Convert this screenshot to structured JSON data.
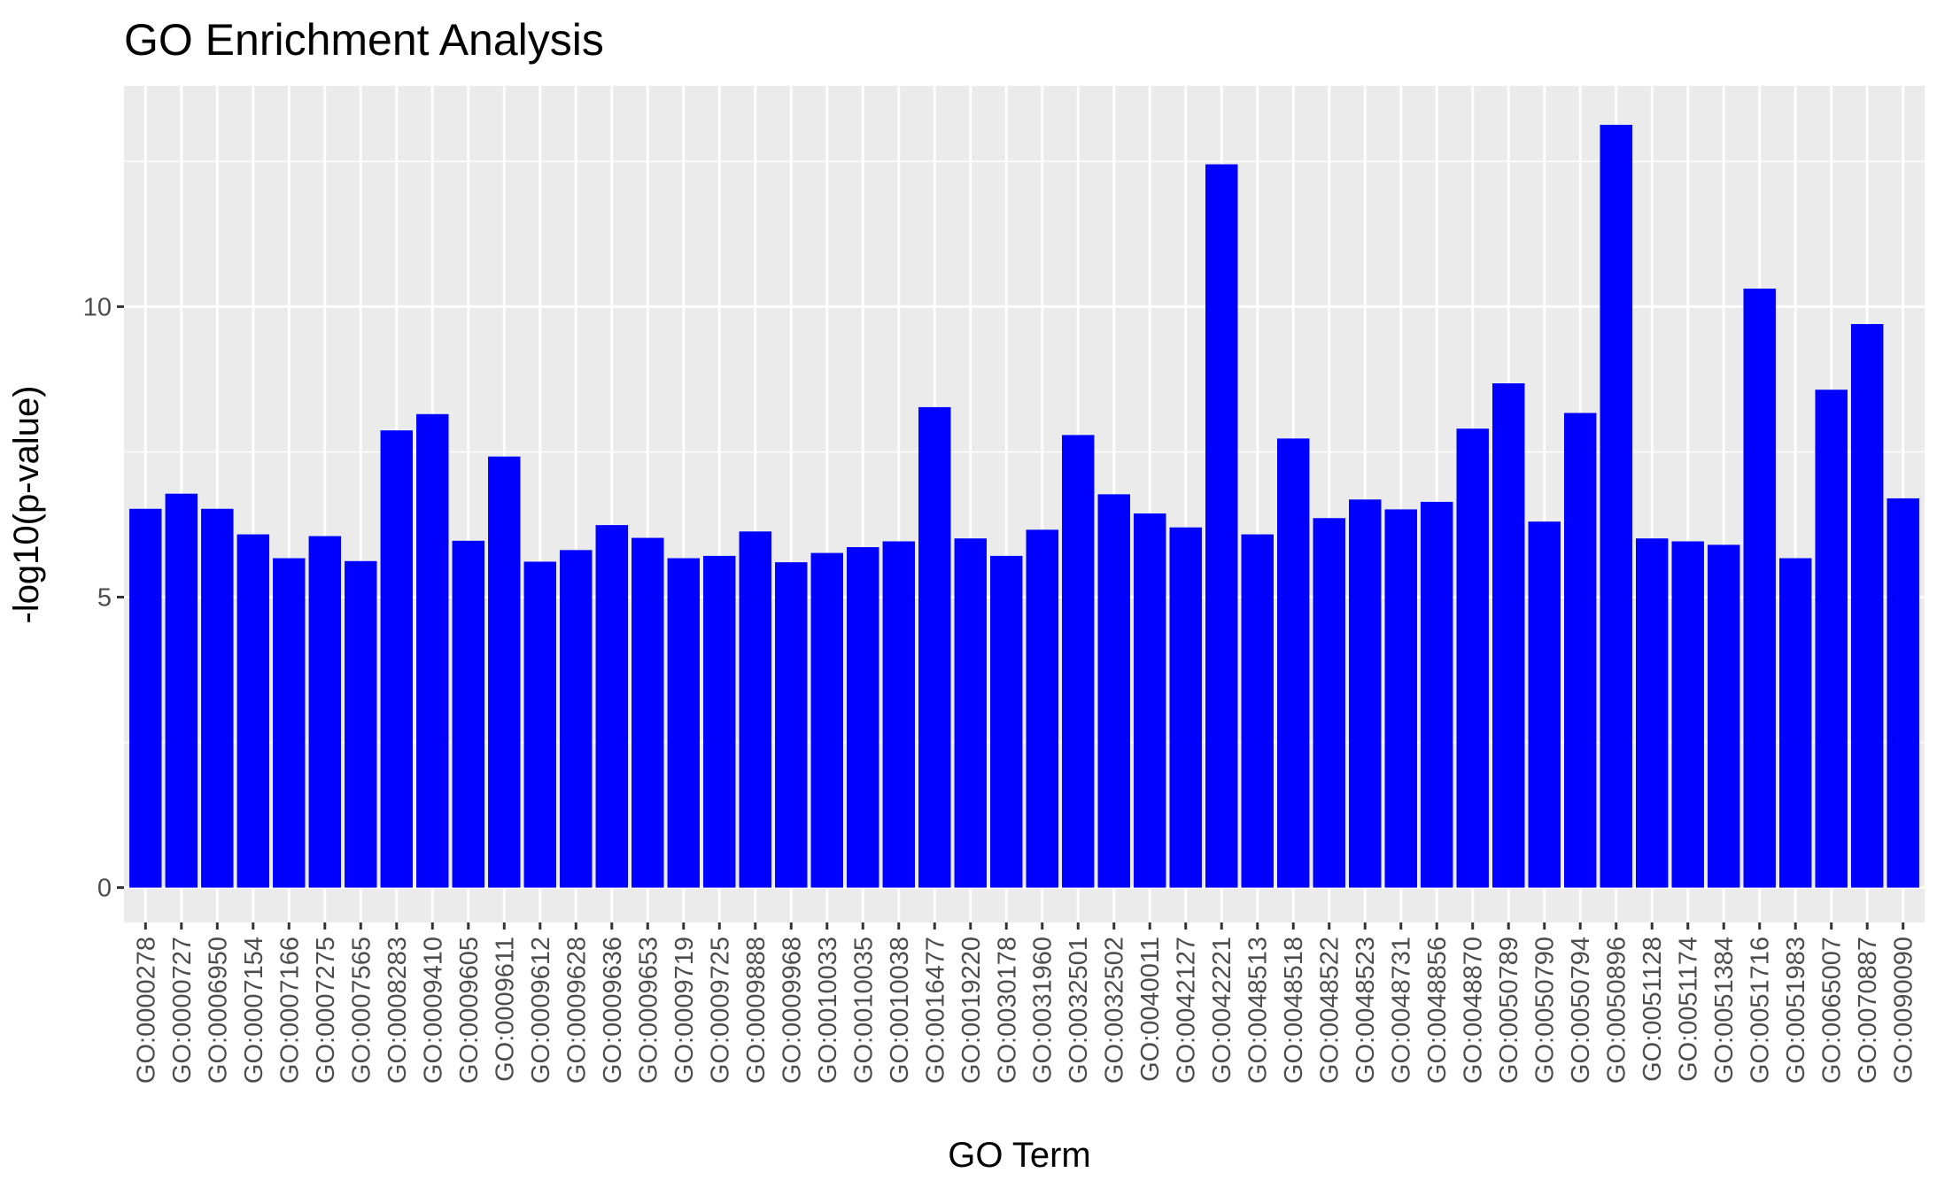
{
  "chart_data": {
    "type": "bar",
    "title": "GO Enrichment Analysis",
    "xlabel": "GO Term",
    "ylabel": "-log10(p-value)",
    "ylim": [
      -0.6,
      13.8
    ],
    "yticks": [
      0,
      5,
      10
    ],
    "bar_color": "#0000ff",
    "panel_color": "#ebebeb",
    "grid_color": "#ffffff",
    "grid": true,
    "categories": [
      "GO:0000278",
      "GO:0000727",
      "GO:0006950",
      "GO:0007154",
      "GO:0007166",
      "GO:0007275",
      "GO:0007565",
      "GO:0008283",
      "GO:0009410",
      "GO:0009605",
      "GO:0009611",
      "GO:0009612",
      "GO:0009628",
      "GO:0009636",
      "GO:0009653",
      "GO:0009719",
      "GO:0009725",
      "GO:0009888",
      "GO:0009968",
      "GO:0010033",
      "GO:0010035",
      "GO:0010038",
      "GO:0016477",
      "GO:0019220",
      "GO:0030178",
      "GO:0031960",
      "GO:0032501",
      "GO:0032502",
      "GO:0040011",
      "GO:0042127",
      "GO:0042221",
      "GO:0048513",
      "GO:0048518",
      "GO:0048522",
      "GO:0048523",
      "GO:0048731",
      "GO:0048856",
      "GO:0048870",
      "GO:0050789",
      "GO:0050790",
      "GO:0050794",
      "GO:0050896",
      "GO:0051128",
      "GO:0051174",
      "GO:0051384",
      "GO:0051716",
      "GO:0051983",
      "GO:0065007",
      "GO:0070887",
      "GO:0090090"
    ],
    "values": [
      6.52,
      6.78,
      6.52,
      6.08,
      5.67,
      6.05,
      5.62,
      7.87,
      8.15,
      5.97,
      7.42,
      5.61,
      5.81,
      6.24,
      6.02,
      5.67,
      5.71,
      6.13,
      5.6,
      5.76,
      5.86,
      5.96,
      8.27,
      6.01,
      5.71,
      6.16,
      7.79,
      6.77,
      6.44,
      6.2,
      12.45,
      6.08,
      7.73,
      6.36,
      6.68,
      6.51,
      6.64,
      7.9,
      8.68,
      6.3,
      8.17,
      13.13,
      6.01,
      5.96,
      5.9,
      10.31,
      5.67,
      8.57,
      9.7,
      6.7
    ]
  }
}
